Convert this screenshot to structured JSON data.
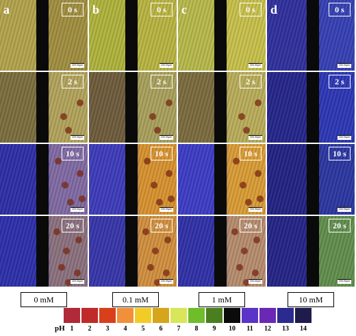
{
  "columns": [
    {
      "label": "a",
      "concentration": "0 mM"
    },
    {
      "label": "b",
      "concentration": "0.1 mM"
    },
    {
      "label": "c",
      "concentration": "1 mM"
    },
    {
      "label": "d",
      "concentration": "10 mM"
    }
  ],
  "times": [
    "0 s",
    "2 s",
    "10 s",
    "20 s"
  ],
  "scale_bar_text": "200.00μm",
  "ph_scale": {
    "label": "pH",
    "values": [
      "1",
      "2",
      "3",
      "4",
      "5",
      "6",
      "7",
      "8",
      "9",
      "10",
      "11",
      "12",
      "13",
      "14"
    ],
    "colors": [
      "#b02a3a",
      "#c02a2a",
      "#d8401c",
      "#f0903a",
      "#f2cc26",
      "#d7a51b",
      "#d9e65a",
      "#6fbd2a",
      "#4a7e1f",
      "#0b0b0b",
      "#5b33c7",
      "#6b28b5",
      "#2b2b8f",
      "#1f1b4d"
    ]
  },
  "panel_colors": {
    "a": {
      "0 s": [
        "#b1a24a",
        "#9f8d3d"
      ],
      "2 s": [
        "#7a6c3b",
        "#b1a25a"
      ],
      "10 s": [
        "#2d2da6",
        "#7f69a2"
      ],
      "20 s": [
        "#2b2ea9",
        "#8a6f7d"
      ]
    },
    "b": {
      "0 s": [
        "#aeb23a",
        "#b8b340"
      ],
      "2 s": [
        "#6d5a3a",
        "#a89f5a"
      ],
      "10 s": [
        "#3c3ab9",
        "#d7912e"
      ],
      "20 s": [
        "#3534a9",
        "#d08f3c"
      ]
    },
    "c": {
      "0 s": [
        "#b6b84a",
        "#c6c04a"
      ],
      "2 s": [
        "#7a6a3c",
        "#b8ac58"
      ],
      "10 s": [
        "#3b3bc5",
        "#d99b33"
      ],
      "20 s": [
        "#2f2fa7",
        "#b58b6c"
      ]
    },
    "d": {
      "0 s": [
        "#2f2e9c",
        "#343fb3"
      ],
      "2 s": [
        "#23238a",
        "#2b36b4"
      ],
      "10 s": [
        "#202082",
        "#2a35a0"
      ],
      "20 s": [
        "#222286",
        "#5f8d4b"
      ]
    }
  }
}
